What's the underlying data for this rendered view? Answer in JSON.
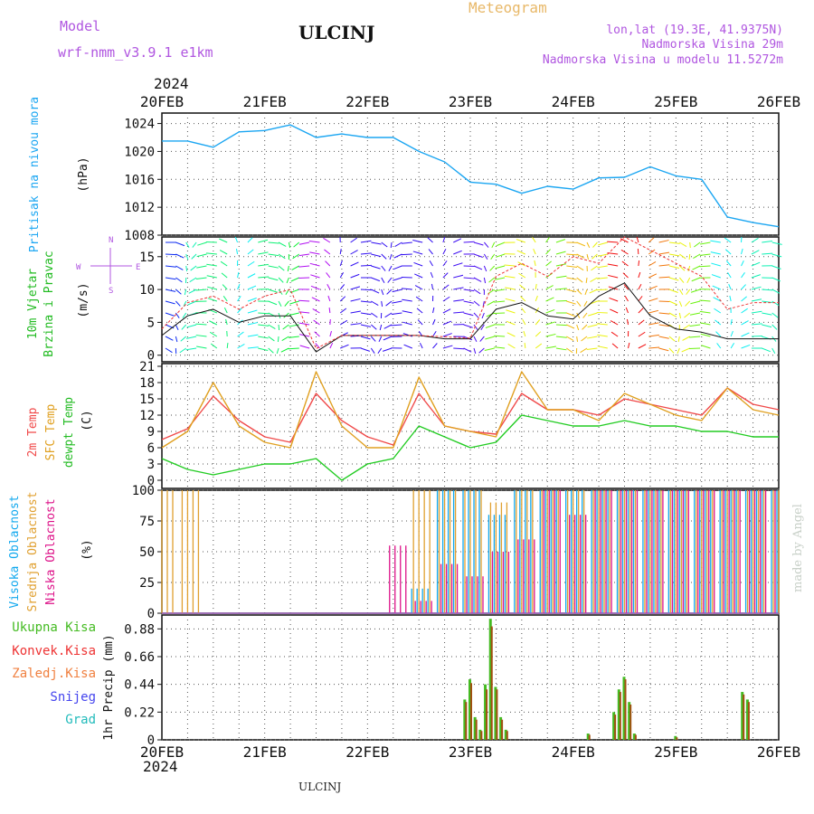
{
  "header": {
    "model_label": "Model",
    "model_name": "wrf-nmm_v3.9.1  e1km",
    "station": "ULCINJ",
    "meteogram": "Meteogram",
    "lonlat": "lon,lat (19.3E, 41.9375N)",
    "elevation": "Nadmorska Visina 29m",
    "model_elevation": "Nadmorska Visina u modelu 11.5272m",
    "footer_station": "ULCINJ",
    "watermark": "made by Angel",
    "year_top": "2024",
    "year_bottom": "2024"
  },
  "colors": {
    "pressure": "#1ba6f2",
    "t2m": "#f04a4a",
    "sfc": "#e0a020",
    "dewpt": "#22cc22",
    "high": "#11a8ee",
    "mid": "#e0a030",
    "low": "#dd1188",
    "total": "#44bb22",
    "conv": "#ee3333",
    "grid": "#555555"
  },
  "chart_data": [
    {
      "type": "line",
      "name": "pressure",
      "ylabel_left": "Pritisak na nivou mora",
      "ylabel_unit": "(hPa)",
      "x_ticks": [
        "20FEB",
        "21FEB",
        "22FEB",
        "23FEB",
        "24FEB",
        "25FEB",
        "26FEB"
      ],
      "ylim": [
        1008,
        1025.5
      ],
      "yticks": [
        1008,
        1012,
        1016,
        1020,
        1024
      ],
      "x": [
        0,
        0.25,
        0.5,
        0.75,
        1,
        1.25,
        1.5,
        1.75,
        2,
        2.25,
        2.5,
        2.75,
        3,
        3.25,
        3.5,
        3.75,
        4,
        4.25,
        4.5,
        4.75,
        5,
        5.25,
        5.5,
        5.75,
        6
      ],
      "values": [
        1021.5,
        1021.5,
        1020.6,
        1022.8,
        1023.0,
        1023.8,
        1022.0,
        1022.5,
        1022.0,
        1022.0,
        1020.0,
        1018.5,
        1015.6,
        1015.3,
        1014.0,
        1015.0,
        1014.6,
        1016.2,
        1016.3,
        1017.8,
        1016.5,
        1016.0,
        1010.6,
        1009.8,
        1009.2
      ]
    },
    {
      "type": "line",
      "name": "wind",
      "ylabel_left": "10m Vjetar",
      "ylabel_left2": "Brzina i Pravac",
      "ylabel_unit": "(m/s)",
      "compass_labels": [
        "N",
        "E",
        "S",
        "W"
      ],
      "ylim": [
        -1,
        18
      ],
      "yticks": [
        0,
        5,
        10,
        15
      ],
      "x": [
        0,
        0.25,
        0.5,
        0.75,
        1,
        1.25,
        1.5,
        1.75,
        2,
        2.25,
        2.5,
        2.75,
        3,
        3.25,
        3.5,
        3.75,
        4,
        4.25,
        4.5,
        4.75,
        5,
        5.25,
        5.5,
        5.75,
        6
      ],
      "speed_black": [
        3,
        6,
        7,
        5,
        6,
        6,
        0.5,
        3,
        3,
        3,
        3,
        2.5,
        2.5,
        7,
        8,
        6,
        5.5,
        9,
        11,
        6,
        4,
        3.5,
        2.5,
        2.5,
        2.5
      ],
      "speed_red": [
        4,
        8,
        9,
        7,
        9,
        10,
        1,
        3,
        3,
        3,
        3,
        2.8,
        2.6,
        12,
        14,
        12,
        15,
        14,
        18,
        16,
        14,
        12,
        7,
        8,
        8
      ]
    },
    {
      "type": "line",
      "name": "temperature",
      "series_labels": [
        "2m Temp",
        "SFC Temp",
        "dewpt Temp"
      ],
      "ylabel_unit": "(C)",
      "ylim": [
        -1.5,
        21.5
      ],
      "yticks": [
        0,
        3,
        6,
        9,
        12,
        15,
        18,
        21
      ],
      "x": [
        0,
        0.25,
        0.5,
        0.75,
        1,
        1.25,
        1.5,
        1.75,
        2,
        2.25,
        2.5,
        2.75,
        3,
        3.25,
        3.5,
        3.75,
        4,
        4.25,
        4.5,
        4.75,
        5,
        5.25,
        5.5,
        5.75,
        6
      ],
      "series": [
        {
          "name": "2m Temp",
          "values": [
            7.5,
            9.5,
            15.5,
            11,
            8,
            7,
            16,
            11,
            8,
            6.5,
            16,
            10,
            9,
            8.5,
            16,
            13,
            13,
            12,
            15,
            14,
            13,
            12,
            17,
            14,
            13
          ]
        },
        {
          "name": "SFC Temp",
          "values": [
            6,
            9,
            18,
            10,
            7,
            6,
            20,
            10,
            6,
            6,
            19,
            10,
            9,
            8,
            20,
            13,
            13,
            11,
            16,
            14,
            12,
            11,
            17,
            13,
            12
          ]
        },
        {
          "name": "dewpt Temp",
          "values": [
            4,
            2,
            1,
            2,
            3,
            3,
            4,
            0,
            3,
            4,
            10,
            8,
            6,
            7,
            12,
            11,
            10,
            10,
            11,
            10,
            10,
            9,
            9,
            8,
            8
          ]
        }
      ]
    },
    {
      "type": "bar",
      "name": "cloud cover",
      "series_labels": [
        "Visoka Oblacnost",
        "Srednja Oblacnost",
        "Niska Oblacnost"
      ],
      "ylabel_unit": "(%)",
      "ylim": [
        0,
        100
      ],
      "yticks": [
        0,
        25,
        50,
        75,
        100
      ],
      "x": [
        0,
        0.25,
        0.5,
        0.75,
        1,
        1.25,
        1.5,
        1.75,
        2,
        2.25,
        2.5,
        2.75,
        3,
        3.25,
        3.5,
        3.75,
        4,
        4.25,
        4.5,
        4.75,
        5,
        5.25,
        5.5,
        5.75,
        6
      ],
      "series": [
        {
          "name": "Visoka Oblacnost",
          "values": [
            0,
            0,
            0,
            0,
            0,
            0,
            0,
            0,
            0,
            0,
            20,
            100,
            100,
            80,
            100,
            100,
            100,
            100,
            100,
            100,
            100,
            100,
            100,
            100,
            100
          ]
        },
        {
          "name": "Srednja Oblacnost",
          "values": [
            100,
            100,
            0,
            0,
            0,
            0,
            0,
            0,
            0,
            0,
            100,
            100,
            100,
            90,
            100,
            100,
            100,
            100,
            100,
            100,
            100,
            100,
            100,
            100,
            100
          ]
        },
        {
          "name": "Niska Oblacnost",
          "values": [
            0,
            0,
            0,
            0,
            0,
            0,
            0,
            0,
            0,
            55,
            10,
            40,
            30,
            50,
            60,
            100,
            80,
            100,
            100,
            100,
            100,
            100,
            100,
            100,
            100
          ]
        }
      ]
    },
    {
      "type": "bar",
      "name": "precipitation",
      "series_labels": [
        "Ukupna Kisa",
        "Konvek.Kisa",
        "Zaledj.Kisa",
        "Snijeg",
        "Grad"
      ],
      "ylabel_unit": "1hr Precip (mm)",
      "ylim": [
        0,
        0.99
      ],
      "yticks": [
        0,
        0.22,
        0.44,
        0.66,
        0.88
      ],
      "x": [
        2.95,
        3.0,
        3.05,
        3.1,
        3.15,
        3.2,
        3.25,
        3.3,
        3.35,
        4.15,
        4.4,
        4.45,
        4.5,
        4.55,
        4.6,
        5.0,
        5.65,
        5.7
      ],
      "series": [
        {
          "name": "Ukupna Kisa",
          "values": [
            0.32,
            0.48,
            0.18,
            0.08,
            0.44,
            0.96,
            0.42,
            0.18,
            0.08,
            0.05,
            0.22,
            0.4,
            0.5,
            0.3,
            0.05,
            0.03,
            0.38,
            0.32
          ]
        },
        {
          "name": "Konvek.Kisa",
          "values": [
            0.3,
            0.45,
            0.16,
            0.07,
            0.4,
            0.9,
            0.4,
            0.16,
            0.07,
            0.04,
            0.2,
            0.38,
            0.48,
            0.28,
            0.04,
            0.02,
            0.36,
            0.3
          ]
        }
      ]
    }
  ]
}
